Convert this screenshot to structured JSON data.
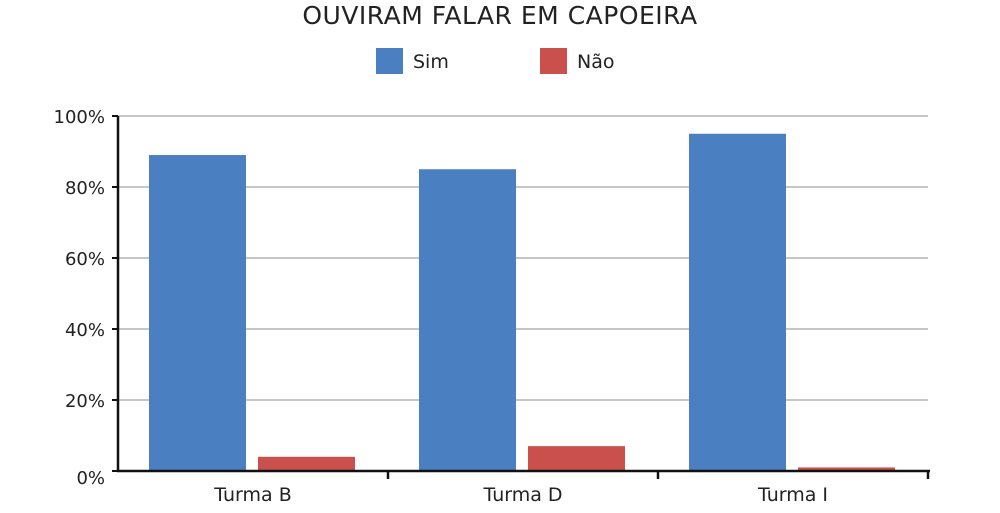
{
  "chart_data": {
    "type": "bar",
    "title": "OUVIRAM FALAR EM CAPOEIRA",
    "xlabel": "",
    "ylabel": "",
    "categories": [
      "Turma B",
      "Turma D",
      "Turma I"
    ],
    "series": [
      {
        "name": "Sim",
        "values": [
          89,
          85,
          95
        ],
        "color": "#4a7fc1"
      },
      {
        "name": "Não",
        "values": [
          4,
          7,
          1
        ],
        "color": "#c9504c"
      }
    ],
    "ylim": [
      0,
      100
    ],
    "yticks": [
      0,
      20,
      40,
      60,
      80,
      100
    ],
    "ytick_labels": [
      "0%",
      "20%",
      "40%",
      "60%",
      "80%",
      "100%"
    ],
    "grid": true,
    "legend_position": "top-center"
  }
}
